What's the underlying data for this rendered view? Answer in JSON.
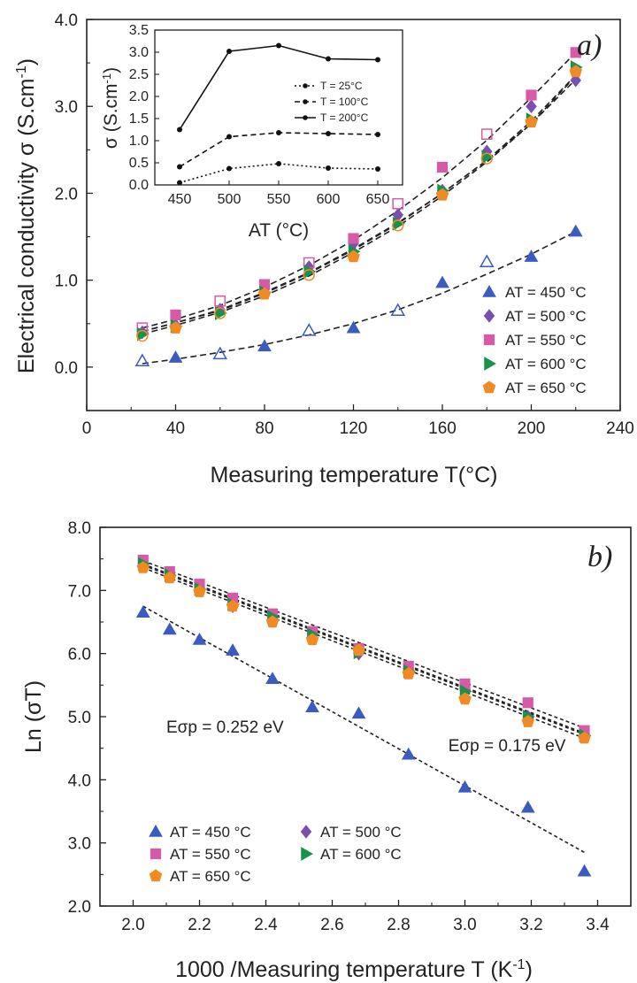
{
  "colors": {
    "AT450": "#3a5bbf",
    "AT500": "#7a4fb0",
    "AT550": "#d65aa8",
    "AT600": "#17934a",
    "AT650": "#f08a24",
    "axis": "#222222"
  },
  "chart_data": [
    {
      "panel_label": "a)",
      "type": "scatter",
      "title": "",
      "xlabel": "Measuring temperature T(°C)",
      "ylabel": "Electrical conductivity σ (S.cm",
      "ylabel_sup": "-1",
      "ylabel_end": ")",
      "xlim": [
        0,
        240
      ],
      "ylim": [
        -0.5,
        4.0
      ],
      "xticks": [
        "0",
        "40",
        "80",
        "120",
        "160",
        "200",
        "240"
      ],
      "yticks": [
        "0.0",
        "1.0",
        "2.0",
        "3.0",
        "4.0"
      ],
      "legend_position": "bottom-right",
      "series": [
        {
          "name": "AT = 450 °C",
          "marker": "triangle-up",
          "color_key": "AT450",
          "x": [
            25,
            40,
            60,
            80,
            100,
            120,
            140,
            160,
            180,
            200,
            220
          ],
          "y": [
            0.06,
            0.11,
            0.15,
            0.24,
            0.4,
            0.45,
            0.65,
            0.97,
            1.1,
            1.27,
            1.56
          ],
          "hollow_x": [
            25,
            60,
            100,
            140,
            180
          ],
          "hollow_y": [
            0.07,
            0.15,
            0.42,
            0.65,
            1.21
          ],
          "fit_y": [
            0.04,
            0.09,
            0.17,
            0.26,
            0.37,
            0.5,
            0.66,
            0.85,
            1.07,
            1.3,
            1.56
          ]
        },
        {
          "name": "AT = 500 °C",
          "marker": "diamond",
          "color_key": "AT500",
          "x": [
            25,
            40,
            60,
            80,
            100,
            120,
            140,
            160,
            180,
            200,
            220
          ],
          "y": [
            0.4,
            0.48,
            0.66,
            0.9,
            1.15,
            1.42,
            1.75,
            2.03,
            2.48,
            3.0,
            3.3
          ],
          "fit_y": [
            0.41,
            0.51,
            0.66,
            0.86,
            1.09,
            1.36,
            1.66,
            2.0,
            2.38,
            2.8,
            3.31
          ]
        },
        {
          "name": "AT = 550 °C",
          "marker": "square",
          "color_key": "AT550",
          "x": [
            25,
            40,
            60,
            80,
            100,
            120,
            140,
            160,
            180,
            200,
            220
          ],
          "y": [
            0.43,
            0.6,
            0.72,
            0.95,
            1.18,
            1.48,
            1.8,
            2.3,
            2.68,
            3.13,
            3.62
          ],
          "hollow_x": [
            25,
            60,
            100,
            140,
            180
          ],
          "hollow_y": [
            0.45,
            0.76,
            1.2,
            1.88,
            2.68
          ],
          "fit_y": [
            0.45,
            0.55,
            0.71,
            0.92,
            1.17,
            1.46,
            1.8,
            2.18,
            2.61,
            3.1,
            3.62
          ]
        },
        {
          "name": "AT = 600 °C",
          "marker": "triangle-right",
          "color_key": "AT600",
          "x": [
            25,
            40,
            60,
            80,
            100,
            120,
            140,
            160,
            180,
            200,
            220
          ],
          "y": [
            0.38,
            0.47,
            0.62,
            0.86,
            1.1,
            1.33,
            1.65,
            2.03,
            2.42,
            2.85,
            3.45
          ],
          "fit_y": [
            0.41,
            0.51,
            0.65,
            0.85,
            1.08,
            1.35,
            1.65,
            2.0,
            2.38,
            2.83,
            3.36
          ]
        },
        {
          "name": "AT = 650 °C",
          "marker": "pentagon",
          "color_key": "AT650",
          "x": [
            25,
            40,
            60,
            80,
            100,
            120,
            140,
            160,
            180,
            200,
            220
          ],
          "y": [
            0.36,
            0.45,
            0.58,
            0.84,
            1.08,
            1.27,
            1.63,
            1.98,
            2.38,
            2.82,
            3.4
          ],
          "hollow_x": [
            25,
            60,
            100,
            140,
            180
          ],
          "hollow_y": [
            0.36,
            0.62,
            1.06,
            1.63,
            2.4
          ],
          "fit_y": [
            0.38,
            0.48,
            0.63,
            0.82,
            1.05,
            1.32,
            1.62,
            1.97,
            2.36,
            2.8,
            3.35
          ]
        }
      ],
      "inset": {
        "type": "line",
        "xlabel": "AT (°C)",
        "ylabel": "σ (S.cm",
        "ylabel_sup": "-1",
        "ylabel_end": ")",
        "xlim": [
          425,
          675
        ],
        "ylim": [
          0,
          3.5
        ],
        "xticks": [
          "450",
          "500",
          "550",
          "600",
          "650"
        ],
        "yticks": [
          "0.0",
          "0.5",
          "1.0",
          "1.5",
          "2.0",
          "2.5",
          "3.0",
          "3.5"
        ],
        "legend_position": "right",
        "series": [
          {
            "name": "T = 25°C",
            "style": "dotted",
            "x": [
              450,
              500,
              550,
              600,
              650
            ],
            "y": [
              0.05,
              0.37,
              0.48,
              0.38,
              0.36
            ]
          },
          {
            "name": "T = 100°C",
            "style": "dashed",
            "x": [
              450,
              500,
              550,
              600,
              650
            ],
            "y": [
              0.41,
              1.09,
              1.18,
              1.16,
              1.14
            ]
          },
          {
            "name": "T = 200°C",
            "style": "solid",
            "x": [
              450,
              500,
              550,
              600,
              650
            ],
            "y": [
              1.25,
              3.02,
              3.15,
              2.85,
              2.83
            ]
          }
        ]
      }
    },
    {
      "panel_label": "b)",
      "type": "scatter",
      "title": "",
      "xlabel": "1000 /Measuring temperature T (K",
      "xlabel_sup": "-1",
      "xlabel_end": ")",
      "ylabel": "Ln (σT)",
      "xlim": [
        1.9,
        3.5
      ],
      "ylim": [
        2.0,
        8.0
      ],
      "xticks": [
        "2.0",
        "2.2",
        "2.4",
        "2.6",
        "2.8",
        "3.0",
        "3.2",
        "3.4"
      ],
      "yticks": [
        "2.0",
        "3.0",
        "4.0",
        "5.0",
        "6.0",
        "7.0",
        "8.0"
      ],
      "legend_position": "bottom-left",
      "annotations": [
        {
          "text": "Eσp = 0.252 eV",
          "x": 2.1,
          "y": 4.75
        },
        {
          "text": "Eσp = 0.175 eV",
          "x": 2.95,
          "y": 4.45
        }
      ],
      "series": [
        {
          "name": "AT = 450 °C",
          "marker": "triangle-up",
          "color_key": "AT450",
          "x": [
            2.03,
            2.11,
            2.2,
            2.3,
            2.42,
            2.54,
            2.68,
            2.83,
            3.0,
            3.19,
            3.36
          ],
          "y": [
            6.65,
            6.38,
            6.22,
            6.05,
            5.6,
            5.15,
            5.05,
            4.4,
            3.88,
            3.56,
            2.55
          ],
          "fit_x": [
            2.03,
            3.36
          ],
          "fit_y": [
            6.75,
            2.85
          ]
        },
        {
          "name": "AT = 500 °C",
          "marker": "diamond",
          "color_key": "AT500",
          "x": [
            2.03,
            2.11,
            2.2,
            2.3,
            2.42,
            2.54,
            2.68,
            2.83,
            3.0,
            3.19,
            3.36
          ],
          "y": [
            7.4,
            7.22,
            7.02,
            6.75,
            6.55,
            6.28,
            6.0,
            5.74,
            5.42,
            5.0,
            4.68
          ],
          "fit_x": [
            2.03,
            3.36
          ],
          "fit_y": [
            7.4,
            4.72
          ]
        },
        {
          "name": "AT = 550 °C",
          "marker": "square",
          "color_key": "AT550",
          "x": [
            2.03,
            2.11,
            2.2,
            2.3,
            2.42,
            2.54,
            2.68,
            2.83,
            3.0,
            3.19,
            3.36
          ],
          "y": [
            7.48,
            7.3,
            7.1,
            6.88,
            6.63,
            6.35,
            6.08,
            5.8,
            5.52,
            5.22,
            4.78
          ],
          "fit_x": [
            2.03,
            3.36
          ],
          "fit_y": [
            7.47,
            4.82
          ]
        },
        {
          "name": "AT = 600 °C",
          "marker": "triangle-right",
          "color_key": "AT600",
          "x": [
            2.03,
            2.11,
            2.2,
            2.3,
            2.42,
            2.54,
            2.68,
            2.83,
            3.0,
            3.19,
            3.36
          ],
          "y": [
            7.42,
            7.24,
            7.02,
            6.78,
            6.58,
            6.3,
            6.02,
            5.72,
            5.4,
            5.0,
            4.7
          ],
          "fit_x": [
            2.03,
            3.36
          ],
          "fit_y": [
            7.42,
            4.74
          ]
        },
        {
          "name": "AT = 650 °C",
          "marker": "pentagon",
          "color_key": "AT650",
          "x": [
            2.03,
            2.11,
            2.2,
            2.3,
            2.42,
            2.54,
            2.68,
            2.83,
            3.0,
            3.19,
            3.36
          ],
          "y": [
            7.36,
            7.2,
            6.98,
            6.75,
            6.5,
            6.22,
            6.05,
            5.68,
            5.28,
            4.92,
            4.66
          ],
          "fit_x": [
            2.03,
            3.36
          ],
          "fit_y": [
            7.36,
            4.66
          ]
        }
      ]
    }
  ]
}
